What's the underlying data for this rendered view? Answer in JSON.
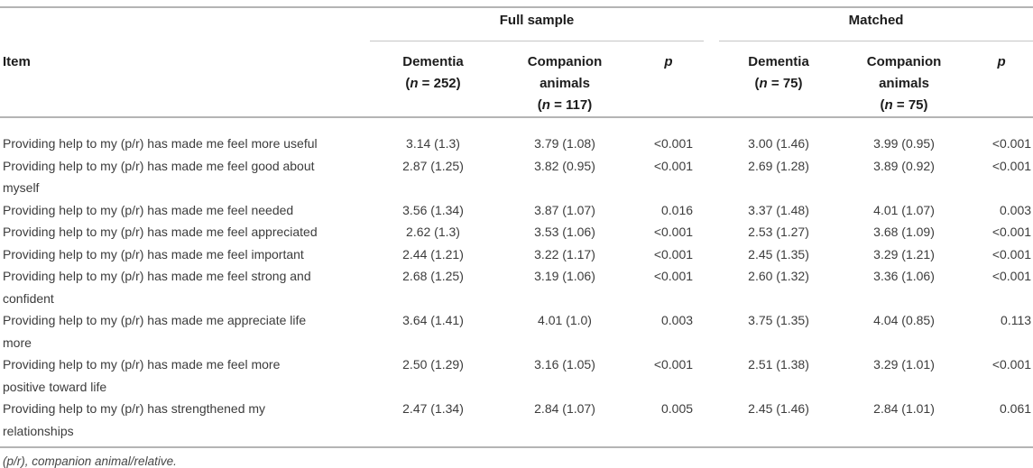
{
  "table": {
    "item_header": "Item",
    "groups": [
      {
        "label": "Full sample"
      },
      {
        "label": "Matched"
      }
    ],
    "columns": [
      {
        "label": "Dementia",
        "sub": "(n = 252)"
      },
      {
        "label": "Companion animals",
        "sub": "(n = 117)"
      },
      {
        "label": "p"
      },
      {
        "label": "Dementia",
        "sub": "(n = 75)"
      },
      {
        "label": "Companion animals",
        "sub": "(n = 75)"
      },
      {
        "label": "p"
      }
    ],
    "rows": [
      {
        "item_lines": [
          "Providing help to my (p/r) has made me feel more useful"
        ],
        "values": [
          "3.14 (1.3)",
          "3.79 (1.08)",
          "<0.001",
          "3.00 (1.46)",
          "3.99 (0.95)",
          "<0.001"
        ]
      },
      {
        "item_lines": [
          "Providing help to my (p/r) has made me feel good about",
          "myself"
        ],
        "values": [
          "2.87 (1.25)",
          "3.82 (0.95)",
          "<0.001",
          "2.69 (1.28)",
          "3.89 (0.92)",
          "<0.001"
        ]
      },
      {
        "item_lines": [
          "Providing help to my (p/r) has made me feel needed"
        ],
        "values": [
          "3.56 (1.34)",
          "3.87 (1.07)",
          "0.016",
          "3.37 (1.48)",
          "4.01 (1.07)",
          "0.003"
        ]
      },
      {
        "item_lines": [
          "Providing help to my (p/r) has made me feel appreciated"
        ],
        "values": [
          "2.62 (1.3)",
          "3.53 (1.06)",
          "<0.001",
          "2.53 (1.27)",
          "3.68 (1.09)",
          "<0.001"
        ]
      },
      {
        "item_lines": [
          "Providing help to my (p/r) has made me feel important"
        ],
        "values": [
          "2.44 (1.21)",
          "3.22 (1.17)",
          "<0.001",
          "2.45 (1.35)",
          "3.29 (1.21)",
          "<0.001"
        ]
      },
      {
        "item_lines": [
          "Providing help to my (p/r) has made me feel strong and",
          "confident"
        ],
        "values": [
          "2.68 (1.25)",
          "3.19 (1.06)",
          "<0.001",
          "2.60 (1.32)",
          "3.36 (1.06)",
          "<0.001"
        ]
      },
      {
        "item_lines": [
          "Providing help to my (p/r) has made me appreciate life",
          "more"
        ],
        "values": [
          "3.64 (1.41)",
          "4.01 (1.0)",
          "0.003",
          "3.75 (1.35)",
          "4.04 (0.85)",
          "0.113"
        ]
      },
      {
        "item_lines": [
          "Providing help to my (p/r) has made me feel more",
          "positive toward life"
        ],
        "values": [
          "2.50 (1.29)",
          "3.16 (1.05)",
          "<0.001",
          "2.51 (1.38)",
          "3.29 (1.01)",
          "<0.001"
        ]
      },
      {
        "item_lines": [
          "Providing help to my (p/r) has strengthened my",
          "relationships"
        ],
        "values": [
          "2.47 (1.34)",
          "2.84 (1.07)",
          "0.005",
          "2.45 (1.46)",
          "2.84 (1.01)",
          "0.061"
        ]
      }
    ],
    "footnote": "(p/r), companion animal/relative."
  },
  "colors": {
    "rule_strong": "#b4b4b4",
    "rule_light": "#c6c6c6",
    "header_text": "#1c1c1c",
    "body_text": "#3c3c3c"
  }
}
